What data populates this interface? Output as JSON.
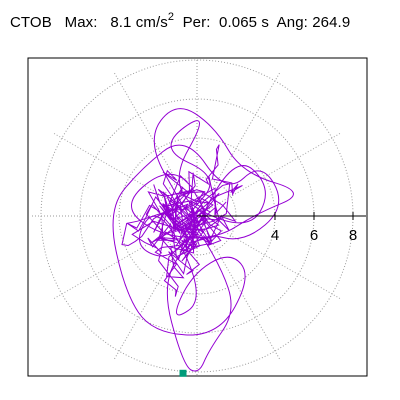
{
  "header": {
    "station": "CTOB",
    "max_label": "Max:",
    "max_value": "8.1 cm/s",
    "max_exp": "2",
    "per_label": "Per:",
    "per_value": "0.065 s",
    "ang_label": "Ang:",
    "ang_value": "264.9"
  },
  "chart_data": {
    "type": "scatter",
    "title": "CTOB Max: 8.1 cm/s2 Per: 0.065 s Ang: 264.9",
    "subtitle": "",
    "projection": "polar particle-motion hodogram",
    "units": "cm/s2",
    "max_amplitude": 8.1,
    "period_s": 0.065,
    "angle_deg": 264.9,
    "radial_ticks": [
      4,
      6,
      8
    ],
    "radial_tick_labels": [
      "4",
      "6",
      "8"
    ],
    "radial_range": [
      0,
      8.5
    ],
    "radial_grid_rings": [
      2,
      4,
      6,
      8
    ],
    "angular_grid_spacing_deg": 30,
    "grid": true,
    "grid_style": "dotted",
    "trace_color": "#9400d3",
    "marker": {
      "label": "max-point",
      "angle_deg": 264.9,
      "amplitude": 8.1,
      "color": "#009c7a"
    },
    "trace_points": [
      [
        -0.4,
        0.1
      ],
      [
        1.2,
        2.0
      ],
      [
        -2.1,
        3.5
      ],
      [
        0.8,
        5.6
      ],
      [
        -1.7,
        1.2
      ],
      [
        2.6,
        -0.9
      ],
      [
        3.9,
        1.4
      ],
      [
        1.9,
        3.3
      ],
      [
        -0.9,
        -2.4
      ],
      [
        -3.4,
        -1.6
      ],
      [
        -2.0,
        0.8
      ],
      [
        0.5,
        -4.2
      ],
      [
        -1.4,
        -5.5
      ],
      [
        -0.3,
        -3.0
      ],
      [
        1.7,
        -1.8
      ],
      [
        2.8,
        -3.1
      ],
      [
        1.1,
        -6.2
      ],
      [
        -2.3,
        -6.0
      ],
      [
        -3.7,
        -3.9
      ],
      [
        -4.6,
        0.3
      ],
      [
        -2.9,
        2.4
      ],
      [
        -0.6,
        4.2
      ],
      [
        1.5,
        1.1
      ],
      [
        3.3,
        2.8
      ],
      [
        4.6,
        0.5
      ],
      [
        2.4,
        -1.4
      ],
      [
        0.2,
        -0.8
      ],
      [
        -1.9,
        -3.2
      ],
      [
        -0.7,
        -7.7
      ],
      [
        0.1,
        -8.1
      ],
      [
        0.6,
        -6.9
      ],
      [
        2.0,
        -4.9
      ],
      [
        1.2,
        -2.5
      ],
      [
        -0.8,
        0.6
      ],
      [
        -2.6,
        3.9
      ],
      [
        -1.1,
        5.9
      ],
      [
        0.9,
        4.6
      ],
      [
        2.3,
        2.2
      ],
      [
        5.7,
        1.2
      ],
      [
        3.0,
        0.1
      ],
      [
        1.0,
        -1.2
      ],
      [
        -2.0,
        -1.0
      ],
      [
        -3.9,
        0.6
      ],
      [
        -1.4,
        2.6
      ],
      [
        0.4,
        0.9
      ]
    ]
  }
}
